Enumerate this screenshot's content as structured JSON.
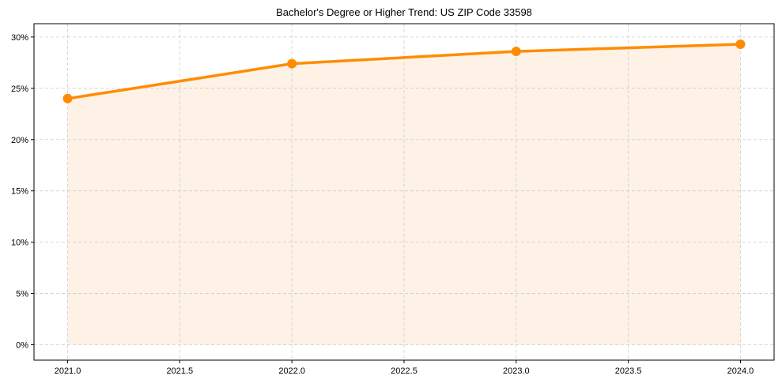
{
  "chart_data": {
    "type": "line",
    "title": "Bachelor's Degree or Higher Trend: US ZIP Code 33598",
    "xlabel": "",
    "ylabel": "",
    "x": [
      2021,
      2022,
      2023,
      2024
    ],
    "series": [
      {
        "name": "Bachelor's Degree or Higher",
        "values": [
          24.0,
          27.4,
          28.6,
          29.3
        ],
        "color": "#FF8C00",
        "fill": "#FEF1E5"
      }
    ],
    "xlim": [
      2020.85,
      2024.15
    ],
    "ylim": [
      -1.5,
      31.3
    ],
    "x_ticks": [
      2021.0,
      2021.5,
      2022.0,
      2022.5,
      2023.0,
      2023.5,
      2024.0
    ],
    "x_tick_labels": [
      "2021.0",
      "2021.5",
      "2022.0",
      "2022.5",
      "2023.0",
      "2023.5",
      "2024.0"
    ],
    "y_ticks": [
      0,
      5,
      10,
      15,
      20,
      25,
      30
    ],
    "y_tick_labels": [
      "0%",
      "5%",
      "10%",
      "15%",
      "20%",
      "25%",
      "30%"
    ],
    "grid": true,
    "grid_style": "dashed",
    "legend": null
  }
}
